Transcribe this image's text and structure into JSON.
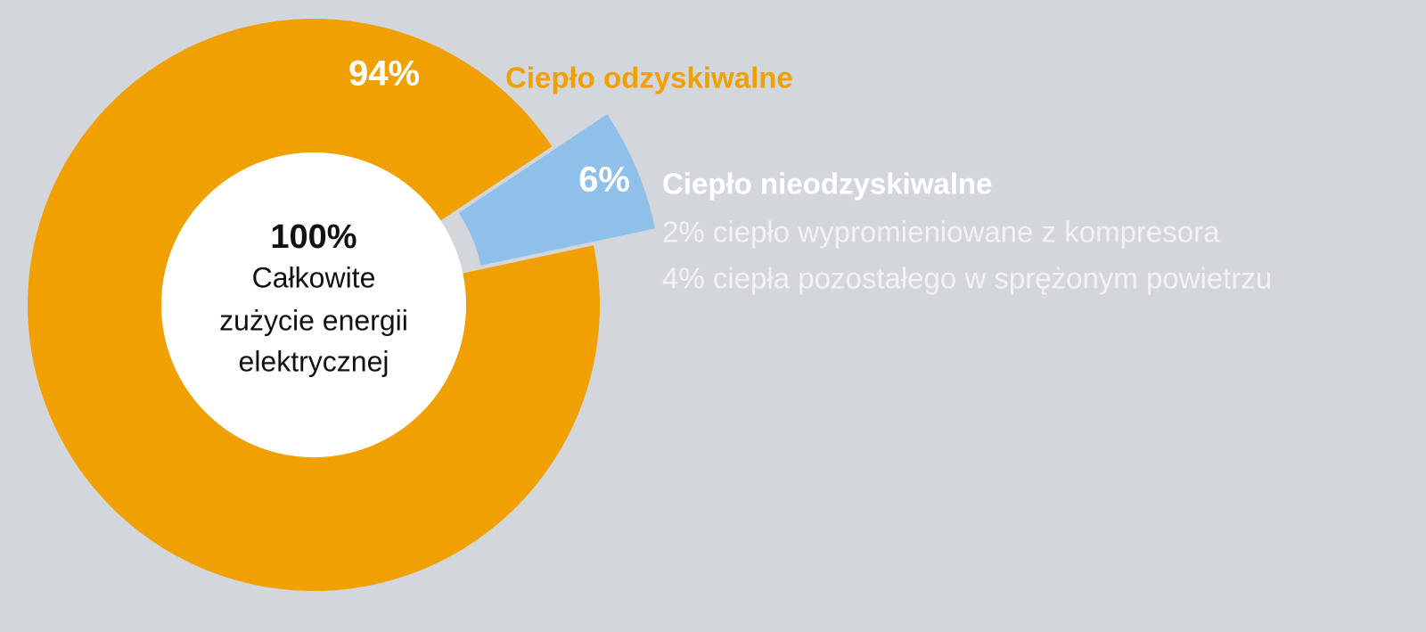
{
  "chart_data": {
    "type": "donut",
    "categories": [
      "Ciepło odzyskiwalne",
      "Ciepło nieodzyskiwalne"
    ],
    "values": [
      94,
      6
    ],
    "value_labels": [
      "94%",
      "6%"
    ],
    "colors": [
      "#f0a000",
      "#8fc0ea"
    ],
    "center_text": [
      "100%",
      "Całkowite",
      "zużycie energii",
      "elektrycznej"
    ],
    "notes": [
      "2% ciepło wypromieniowane z kompresora",
      "4% ciepła pozostałego w sprężonym powietrzu"
    ]
  }
}
